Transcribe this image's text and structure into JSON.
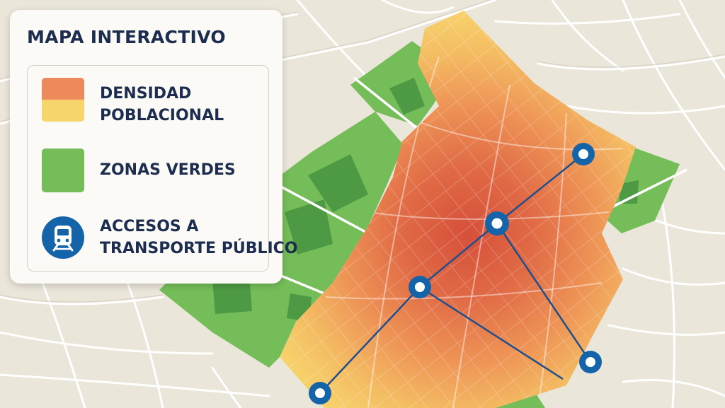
{
  "legend": {
    "title": "MAPA INTERACTIVO",
    "items": [
      {
        "label_line1": "DENSIDAD",
        "label_line2": "POBLACIONAL",
        "colors": [
          "#ec8a5c",
          "#f6d56c"
        ]
      },
      {
        "label_line1": "ZONAS VERDES",
        "colors": [
          "#74bd58"
        ]
      },
      {
        "label_line1": "ACCESOS A",
        "label_line2": "TRANSPORTE PÚBLICO",
        "colors": [
          "#1563a8"
        ],
        "icon": "train-icon"
      }
    ]
  },
  "colors": {
    "background": "#ebe6da",
    "street": "#ffffff",
    "density_high": "#d9533c",
    "density_mid": "#ec8a5c",
    "density_low": "#f6d56c",
    "green": "#74bd58",
    "green_dark": "#4e9a44",
    "transit": "#1563a8"
  }
}
